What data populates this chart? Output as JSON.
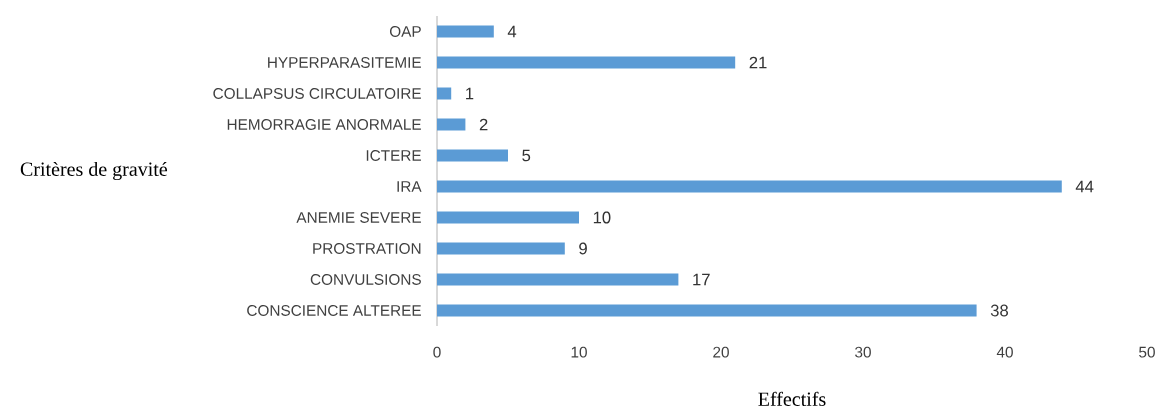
{
  "chart_data": {
    "type": "bar",
    "orientation": "horizontal",
    "xlabel": "Effectifs",
    "ylabel": "Critères de gravité",
    "categories": [
      "OAP",
      "HYPERPARASITEMIE",
      "COLLAPSUS CIRCULATOIRE",
      "HEMORRAGIE ANORMALE",
      "ICTERE",
      "IRA",
      "ANEMIE SEVERE",
      "PROSTRATION",
      "CONVULSIONS",
      "CONSCIENCE ALTEREE"
    ],
    "values": [
      4,
      21,
      1,
      2,
      5,
      44,
      10,
      9,
      17,
      38
    ],
    "color": "#5b9bd5",
    "xlim": [
      0,
      50
    ],
    "xticks": [
      0,
      10,
      20,
      30,
      40,
      50
    ],
    "data_labels": true,
    "grid": false
  }
}
